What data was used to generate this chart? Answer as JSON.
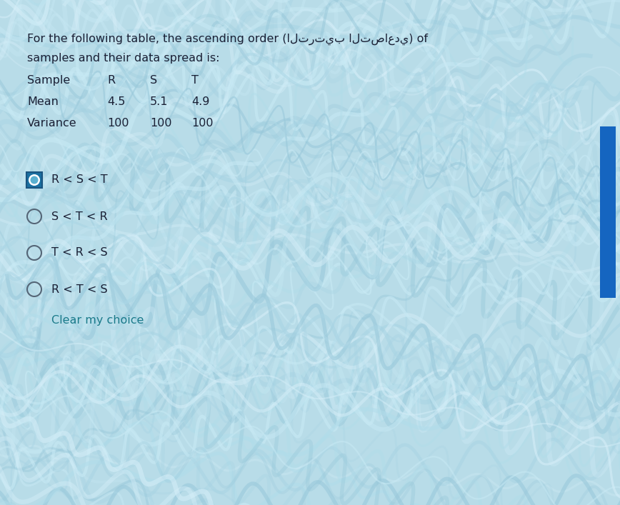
{
  "title_line1": "For the following table, the ascending order (الترتيب التصاعدي) of",
  "title_line2": "samples and their data spread is:",
  "table_headers": [
    "Sample",
    "R",
    "S",
    "T"
  ],
  "row_mean": [
    "Mean",
    "4.5",
    "5.1",
    "4.9"
  ],
  "row_variance": [
    "Variance",
    "100",
    "100",
    "100"
  ],
  "options": [
    {
      "label": "R < S < T",
      "selected": true
    },
    {
      "label": "S < T < R",
      "selected": false
    },
    {
      "label": "T < R < S",
      "selected": false
    },
    {
      "label": "R < T < S",
      "selected": false
    }
  ],
  "clear_label": "Clear my choice",
  "bg_color": "#b8dce8",
  "wave_color_light": "#cceaf5",
  "wave_color_dark": "#9ecfdf",
  "text_color": "#1a2035",
  "option_text_color": "#1a2035",
  "clear_color": "#1a7a8a",
  "selected_box_fill": "#1a6fa0",
  "selected_box_edge": "#1a5580",
  "selected_inner_fill": "#5ab0d0",
  "radio_edge_color": "#556677",
  "blue_bar_color": "#1565c0",
  "font_size_title": 11.5,
  "font_size_table": 11.5,
  "font_size_options": 11.5,
  "figwidth": 8.68,
  "figheight": 7.07
}
